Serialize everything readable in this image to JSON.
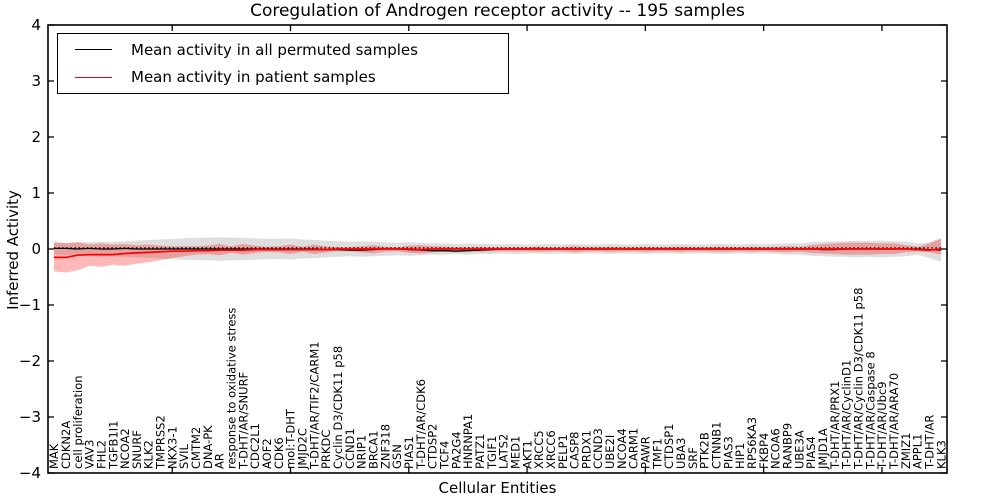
{
  "figure": {
    "background": "#ffffff"
  },
  "chart_data": {
    "type": "line",
    "title": "Coregulation of Androgen receptor activity -- 195 samples",
    "xlabel": "Cellular Entities",
    "ylabel": "Inferred Activity",
    "ylim": [
      -4,
      4
    ],
    "yticks": [
      -4,
      -3,
      -2,
      -1,
      0,
      1,
      2,
      3,
      4
    ],
    "ytick_labels": [
      "−4",
      "−3",
      "−2",
      "−1",
      "0",
      "1",
      "2",
      "3",
      "4"
    ],
    "xtick_positions": [
      10,
      20,
      30,
      40,
      50,
      60,
      70
    ],
    "grid": false,
    "legend_position": "upper left",
    "categories": [
      "MAK",
      "CDKN2A",
      "cell proliferation",
      "VAV3",
      "FHL2",
      "TGFB1I1",
      "NCOA2",
      "SNURF",
      "KLK2",
      "TMPRSS2",
      "NKX3-1",
      "SVIL",
      "CMTM2",
      "DNA-PK",
      "AR",
      "response to oxidative stress",
      "T-DHT/AR/SNURF",
      "CDC2L1",
      "AOF2",
      "CDK6",
      "mol:T-DHT",
      "JMJD2C",
      "T-DHT/AR/TIF2/CARM1",
      "PRKDC",
      "Cyclin D3/CDK11 p58",
      "CCND1",
      "NRIP1",
      "BRCA1",
      "ZNF318",
      "GSN",
      "PIAS1",
      "T-DHT/AR/CDK6",
      "CTDSP2",
      "TCF4",
      "PA2G4",
      "HNRNPA1",
      "PATZ1",
      "TGIF1",
      "LATS2",
      "MED1",
      "AKT1",
      "XRCC5",
      "XRCC6",
      "PELP1",
      "CASP8",
      "PRDX1",
      "CCND3",
      "UBE2I",
      "NCOA4",
      "CARM1",
      "PAWR",
      "TMF1",
      "CTDSP1",
      "UBA3",
      "SRF",
      "PTK2B",
      "CTNNB1",
      "PIAS3",
      "HIP1",
      "RPS6KA3",
      "FKBP4",
      "NCOA6",
      "RANBP9",
      "UBE3A",
      "PIAS4",
      "JMJD1A",
      "T-DHT/AR/PRX1",
      "T-DHT/AR/CyclinD1",
      "T-DHT/AR/Cyclin D3/CDK11 p58",
      "T-DHT/AR/Caspase 8",
      "T-DHT/AR/Ubc9",
      "T-DHT/AR/ARA70",
      "ZMIZ1",
      "APPL1",
      "T-DHT/AR",
      "KLK3"
    ],
    "series": [
      {
        "name": "Mean activity in all permuted samples",
        "color": "#000000",
        "band_color": "#000000",
        "band_opacity": 0.13,
        "values": [
          0.01,
          0.01,
          0.0,
          0.01,
          0.0,
          0.0,
          0.01,
          0.0,
          0.0,
          0.0,
          0.0,
          0.0,
          0.0,
          0.0,
          0.0,
          0.0,
          0.0,
          0.0,
          0.0,
          0.0,
          0.0,
          0.0,
          0.0,
          -0.01,
          -0.01,
          -0.02,
          -0.02,
          -0.01,
          0.0,
          0.0,
          -0.01,
          -0.02,
          -0.03,
          -0.03,
          -0.04,
          -0.03,
          -0.02,
          -0.01,
          0.0,
          0.0,
          0.0,
          0.0,
          0.0,
          0.0,
          0.0,
          0.0,
          0.0,
          0.0,
          0.0,
          0.0,
          0.0,
          0.0,
          0.0,
          0.0,
          0.0,
          0.0,
          0.0,
          0.0,
          0.0,
          0.0,
          0.0,
          0.0,
          0.0,
          0.0,
          0.0,
          -0.01,
          -0.01,
          0.0,
          0.0,
          0.0,
          0.0,
          0.0,
          0.0,
          0.0,
          -0.01,
          -0.02
        ],
        "band_upper": [
          0.1,
          0.11,
          0.12,
          0.12,
          0.13,
          0.13,
          0.14,
          0.15,
          0.16,
          0.17,
          0.18,
          0.19,
          0.2,
          0.2,
          0.21,
          0.2,
          0.2,
          0.19,
          0.18,
          0.18,
          0.19,
          0.17,
          0.16,
          0.15,
          0.14,
          0.13,
          0.14,
          0.13,
          0.12,
          0.11,
          0.12,
          0.11,
          0.1,
          0.1,
          0.09,
          0.1,
          0.09,
          0.09,
          0.08,
          0.09,
          0.08,
          0.08,
          0.09,
          0.08,
          0.09,
          0.08,
          0.08,
          0.09,
          0.08,
          0.08,
          0.09,
          0.08,
          0.08,
          0.09,
          0.08,
          0.08,
          0.09,
          0.09,
          0.08,
          0.09,
          0.08,
          0.09,
          0.1,
          0.1,
          0.12,
          0.13,
          0.14,
          0.14,
          0.15,
          0.14,
          0.15,
          0.14,
          0.13,
          0.1,
          0.12,
          0.2
        ],
        "band_lower": [
          -0.1,
          -0.11,
          -0.12,
          -0.12,
          -0.13,
          -0.13,
          -0.14,
          -0.15,
          -0.16,
          -0.17,
          -0.18,
          -0.19,
          -0.2,
          -0.2,
          -0.21,
          -0.2,
          -0.2,
          -0.19,
          -0.18,
          -0.18,
          -0.19,
          -0.17,
          -0.16,
          -0.15,
          -0.14,
          -0.13,
          -0.14,
          -0.13,
          -0.12,
          -0.11,
          -0.12,
          -0.11,
          -0.1,
          -0.1,
          -0.09,
          -0.1,
          -0.09,
          -0.09,
          -0.08,
          -0.09,
          -0.08,
          -0.08,
          -0.09,
          -0.08,
          -0.09,
          -0.08,
          -0.08,
          -0.09,
          -0.08,
          -0.08,
          -0.09,
          -0.08,
          -0.08,
          -0.09,
          -0.08,
          -0.08,
          -0.09,
          -0.09,
          -0.08,
          -0.09,
          -0.08,
          -0.09,
          -0.1,
          -0.1,
          -0.12,
          -0.13,
          -0.14,
          -0.14,
          -0.15,
          -0.14,
          -0.15,
          -0.14,
          -0.13,
          -0.1,
          -0.16,
          -0.23
        ]
      },
      {
        "name": "Mean activity in patient samples",
        "color": "#ff0000",
        "band_color": "#ff0000",
        "band_opacity": 0.28,
        "values": [
          -0.15,
          -0.15,
          -0.11,
          -0.1,
          -0.1,
          -0.1,
          -0.08,
          -0.07,
          -0.06,
          -0.05,
          -0.04,
          -0.04,
          -0.03,
          -0.03,
          -0.02,
          -0.02,
          -0.02,
          -0.01,
          -0.01,
          -0.01,
          -0.01,
          -0.01,
          -0.01,
          -0.01,
          0.0,
          0.0,
          0.0,
          0.0,
          0.0,
          0.0,
          0.0,
          -0.01,
          0.0,
          0.0,
          0.0,
          0.0,
          0.0,
          0.0,
          0.0,
          0.0,
          0.0,
          0.0,
          0.0,
          0.0,
          0.0,
          0.0,
          0.0,
          0.0,
          0.0,
          0.0,
          0.0,
          0.0,
          0.0,
          0.0,
          0.0,
          0.0,
          0.0,
          0.0,
          0.0,
          0.0,
          0.0,
          0.0,
          0.0,
          0.0,
          0.0,
          0.0,
          0.0,
          0.0,
          0.0,
          0.0,
          0.0,
          0.0,
          0.0,
          -0.01,
          -0.02,
          0.0
        ],
        "band_upper": [
          0.13,
          0.1,
          0.12,
          0.08,
          0.1,
          0.08,
          0.09,
          0.07,
          0.08,
          0.06,
          0.05,
          0.05,
          0.05,
          0.06,
          0.09,
          0.05,
          0.09,
          0.06,
          0.04,
          0.05,
          0.08,
          0.04,
          0.08,
          0.05,
          0.03,
          0.03,
          0.05,
          0.07,
          0.04,
          0.03,
          0.06,
          0.07,
          0.05,
          0.04,
          0.03,
          0.03,
          0.04,
          0.03,
          0.03,
          0.03,
          0.03,
          0.04,
          0.03,
          0.03,
          0.05,
          0.03,
          0.03,
          0.04,
          0.03,
          0.03,
          0.04,
          0.03,
          0.03,
          0.04,
          0.03,
          0.03,
          0.04,
          0.04,
          0.03,
          0.04,
          0.03,
          0.04,
          0.05,
          0.04,
          0.07,
          0.09,
          0.1,
          0.11,
          0.11,
          0.11,
          0.1,
          0.1,
          0.07,
          0.04,
          0.1,
          0.18
        ],
        "band_lower": [
          -0.4,
          -0.42,
          -0.38,
          -0.3,
          -0.32,
          -0.28,
          -0.3,
          -0.26,
          -0.24,
          -0.2,
          -0.16,
          -0.13,
          -0.1,
          -0.09,
          -0.11,
          -0.07,
          -0.1,
          -0.07,
          -0.05,
          -0.06,
          -0.09,
          -0.05,
          -0.09,
          -0.06,
          -0.04,
          -0.04,
          -0.06,
          -0.08,
          -0.05,
          -0.04,
          -0.07,
          -0.08,
          -0.06,
          -0.05,
          -0.04,
          -0.04,
          -0.05,
          -0.04,
          -0.04,
          -0.04,
          -0.04,
          -0.05,
          -0.04,
          -0.04,
          -0.06,
          -0.04,
          -0.04,
          -0.05,
          -0.04,
          -0.04,
          -0.05,
          -0.04,
          -0.04,
          -0.05,
          -0.04,
          -0.04,
          -0.05,
          -0.05,
          -0.04,
          -0.05,
          -0.04,
          -0.05,
          -0.06,
          -0.05,
          -0.07,
          -0.08,
          -0.09,
          -0.1,
          -0.1,
          -0.1,
          -0.09,
          -0.09,
          -0.06,
          -0.04,
          -0.06,
          -0.1
        ]
      }
    ],
    "zero_reference_line": {
      "style": "dotted",
      "color": "#000000",
      "value": 0.02
    }
  }
}
